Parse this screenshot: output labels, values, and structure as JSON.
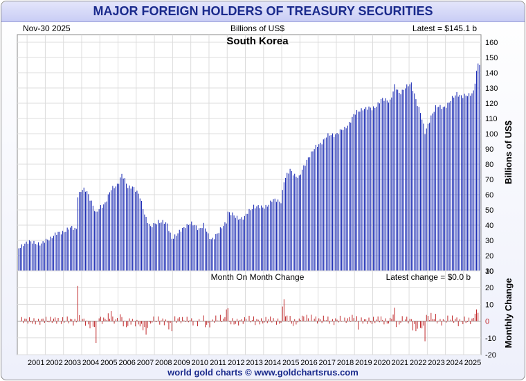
{
  "header": {
    "title": "MAJOR FOREIGN HOLDERS OF TREASURY SECURITIES"
  },
  "footer": {
    "credit": "world gold charts © www.goldchartsrus.com"
  },
  "colors": {
    "bars": "#1f2fb5",
    "change_bars": "#c0282a",
    "grid": "#dcdcdc",
    "title": "#1a2a8c"
  },
  "chart_data": [
    {
      "type": "bar",
      "title": "South Korea",
      "date_label": "Nov-30  2025",
      "units_label": "Billions of US$",
      "latest_label": "Latest = $145.1 b",
      "ylabel": "Billions of US$",
      "ylim": [
        10,
        165
      ],
      "yticks": [
        10,
        20,
        30,
        40,
        50,
        60,
        70,
        80,
        90,
        100,
        110,
        120,
        130,
        140,
        150,
        160
      ],
      "x_start": "2000-07",
      "x_end": "2025-11",
      "keypoints": [
        [
          "2000-07",
          25
        ],
        [
          "2000-10",
          28
        ],
        [
          "2001-06",
          29
        ],
        [
          "2001-10",
          27
        ],
        [
          "2002-02",
          31
        ],
        [
          "2002-06",
          33
        ],
        [
          "2002-12",
          36
        ],
        [
          "2003-06",
          38
        ],
        [
          "2003-09",
          38
        ],
        [
          "2003-10",
          60
        ],
        [
          "2004-01",
          63
        ],
        [
          "2004-04",
          62
        ],
        [
          "2004-07",
          56
        ],
        [
          "2004-10",
          47
        ],
        [
          "2005-01",
          52
        ],
        [
          "2005-04",
          55
        ],
        [
          "2005-08",
          63
        ],
        [
          "2005-12",
          67
        ],
        [
          "2006-03",
          73
        ],
        [
          "2006-07",
          65
        ],
        [
          "2006-10",
          66
        ],
        [
          "2007-03",
          58
        ],
        [
          "2007-07",
          45
        ],
        [
          "2007-10",
          38
        ],
        [
          "2008-03",
          43
        ],
        [
          "2008-06",
          42
        ],
        [
          "2008-09",
          40
        ],
        [
          "2008-12",
          32
        ],
        [
          "2009-04",
          34
        ],
        [
          "2009-09",
          40
        ],
        [
          "2009-12",
          41
        ],
        [
          "2010-06",
          38
        ],
        [
          "2010-09",
          40
        ],
        [
          "2010-12",
          33
        ],
        [
          "2011-02",
          31
        ],
        [
          "2011-07",
          35
        ],
        [
          "2011-12",
          43
        ],
        [
          "2012-01",
          49
        ],
        [
          "2012-06",
          45
        ],
        [
          "2012-12",
          45
        ],
        [
          "2013-06",
          53
        ],
        [
          "2013-12",
          51
        ],
        [
          "2014-06",
          56
        ],
        [
          "2014-12",
          56
        ],
        [
          "2015-02",
          69
        ],
        [
          "2015-06",
          76
        ],
        [
          "2015-12",
          71
        ],
        [
          "2016-06",
          85
        ],
        [
          "2016-12",
          92
        ],
        [
          "2017-06",
          98
        ],
        [
          "2017-12",
          100
        ],
        [
          "2018-06",
          103
        ],
        [
          "2018-12",
          112
        ],
        [
          "2019-06",
          117
        ],
        [
          "2019-12",
          116
        ],
        [
          "2020-06",
          122
        ],
        [
          "2020-12",
          122
        ],
        [
          "2021-03",
          131
        ],
        [
          "2021-06",
          126
        ],
        [
          "2021-10",
          131
        ],
        [
          "2022-02",
          132
        ],
        [
          "2022-05",
          123
        ],
        [
          "2022-08",
          114
        ],
        [
          "2022-11",
          100
        ],
        [
          "2023-03",
          112
        ],
        [
          "2023-06",
          117
        ],
        [
          "2023-12",
          118
        ],
        [
          "2024-03",
          120
        ],
        [
          "2024-08",
          127
        ],
        [
          "2024-12",
          124
        ],
        [
          "2025-03",
          125
        ],
        [
          "2025-07",
          128
        ],
        [
          "2025-09",
          140
        ],
        [
          "2025-10",
          145
        ],
        [
          "2025-11",
          145.1
        ]
      ]
    },
    {
      "type": "bar",
      "title": "Month On Month Change",
      "latest_label": "Latest change = $0.0 b",
      "ylabel": "Monthly Change",
      "ylim": [
        -20,
        30
      ],
      "yticks": [
        -20,
        -10,
        0,
        10,
        20,
        30
      ],
      "xticklabels": [
        "2001",
        "2002",
        "2003",
        "2004",
        "2005",
        "2006",
        "2007",
        "2008",
        "2009",
        "2010",
        "2011",
        "2012",
        "2013",
        "2014",
        "2015",
        "2016",
        "2017",
        "2018",
        "2019",
        "2020",
        "2021",
        "2022",
        "2023",
        "2024",
        "2025"
      ],
      "spikes": [
        [
          "2003-10",
          21
        ],
        [
          "2005-08",
          6
        ],
        [
          "2007-07",
          -8
        ],
        [
          "2008-12",
          -6
        ],
        [
          "2011-12",
          7
        ],
        [
          "2015-02",
          13
        ],
        [
          "2004-10",
          -13
        ],
        [
          "2022-11",
          -12
        ],
        [
          "2019-03",
          -5
        ],
        [
          "2021-03",
          8
        ],
        [
          "2022-05",
          -6
        ],
        [
          "2025-09",
          7
        ],
        [
          "2025-10",
          5
        ]
      ]
    }
  ]
}
